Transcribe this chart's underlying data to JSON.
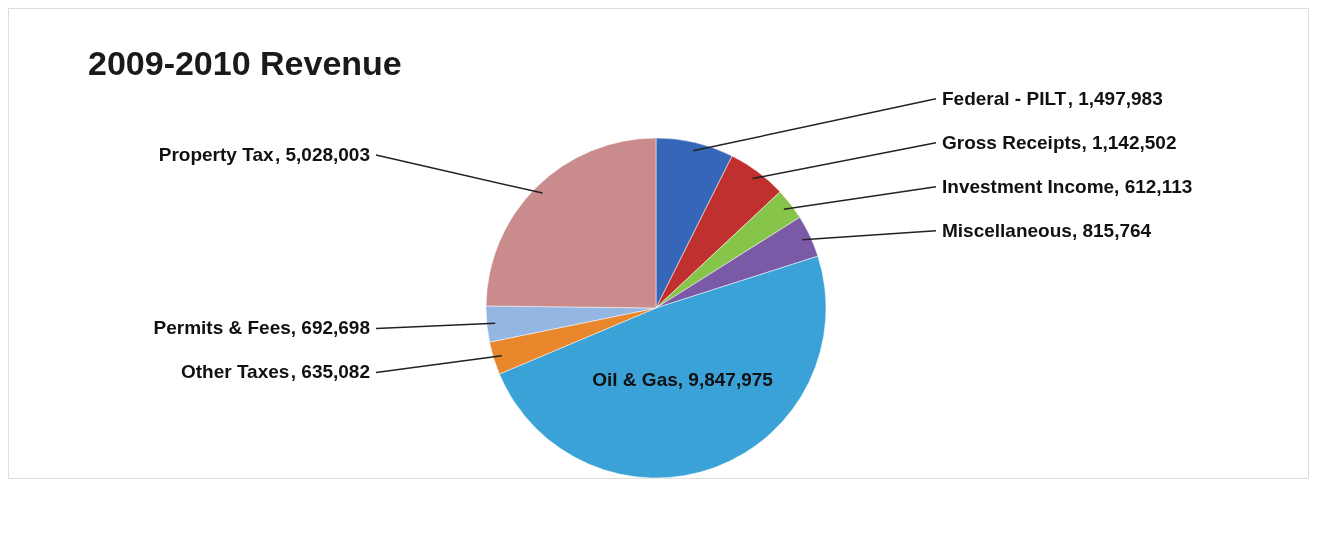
{
  "chart_data": {
    "type": "pie",
    "title": "2009-2010 Revenue",
    "categories": [
      "Federal - PILT",
      "Gross Receipts",
      "Investment Income",
      "Miscellaneous",
      "Oil & Gas",
      "Other Taxes",
      "Permits & Fees",
      "Property Tax"
    ],
    "values": [
      1497983,
      1142502,
      612113,
      815764,
      9847975,
      635082,
      692698,
      5028003
    ],
    "value_labels": [
      ", 1,497,983",
      ", 1,142,502",
      ", 612,113",
      ", 815,764",
      ", 9,847,975",
      ", 635,082",
      ", 692,698",
      ", 5,028,003"
    ],
    "colors": [
      "#3566b8",
      "#c0302e",
      "#86c44a",
      "#7a5aa6",
      "#3aa2d6",
      "#e8872c",
      "#94b6e2",
      "#c98b8b"
    ],
    "legend": false
  }
}
